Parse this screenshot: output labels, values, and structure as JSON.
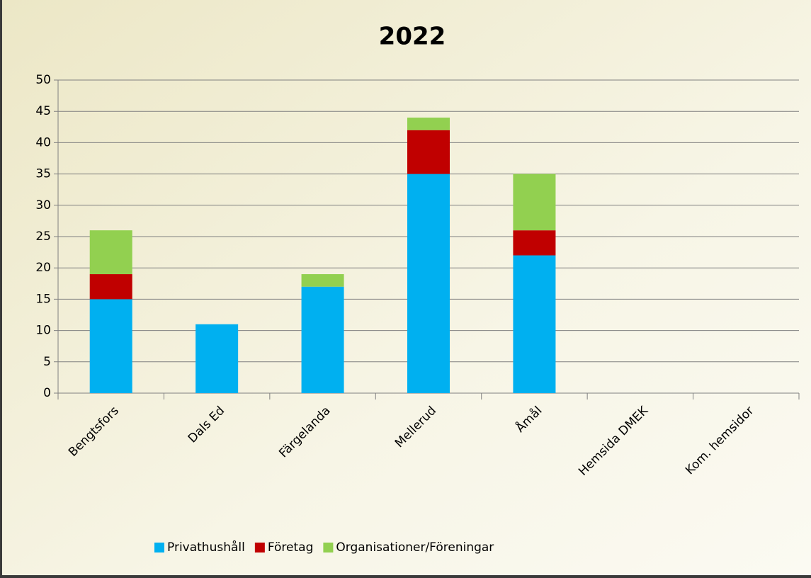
{
  "chart_data": {
    "type": "stacked_bar",
    "title": "2022",
    "categories": [
      "Bengtsfors",
      "Dals Ed",
      "Färgelanda",
      "Mellerud",
      "Åmål",
      "Hemsida DMEK",
      "Kom. hemsidor"
    ],
    "series": [
      {
        "name": "Privathushåll",
        "color": "#00b0f0",
        "values": [
          15,
          11,
          17,
          35,
          22,
          0,
          0
        ]
      },
      {
        "name": "Företag",
        "color": "#c00000",
        "values": [
          4,
          0,
          0,
          7,
          4,
          0,
          0
        ]
      },
      {
        "name": "Organisationer/Föreningar",
        "color": "#92d050",
        "values": [
          7,
          0,
          2,
          2,
          9,
          0,
          0
        ]
      }
    ],
    "ylim": [
      0,
      50
    ],
    "yticks": [
      0,
      5,
      10,
      15,
      20,
      25,
      30,
      35,
      40,
      45,
      50
    ],
    "grid": true,
    "legend": "bottom"
  }
}
